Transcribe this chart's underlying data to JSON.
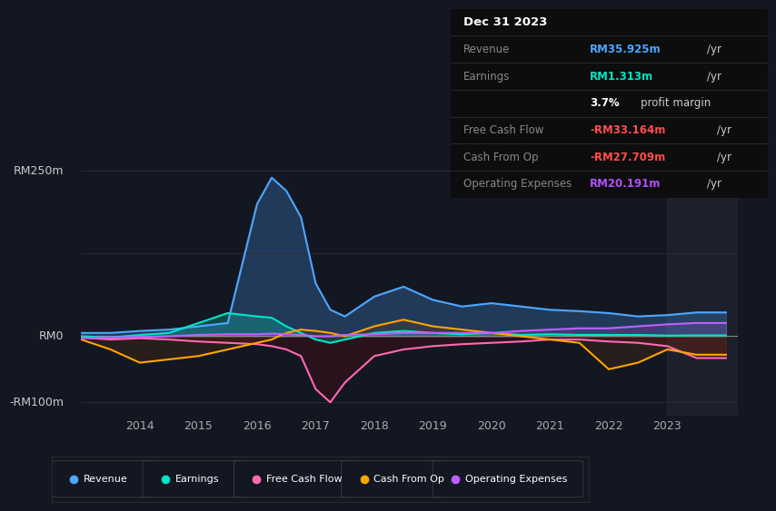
{
  "bg_color": "#131722",
  "plot_bg_color": "#131722",
  "grid_color": "#2a2e39",
  "zero_line_color": "#888888",
  "title_date": "Dec 31 2023",
  "ylim": [
    -120,
    280
  ],
  "yticks_labels": [
    "RM250m",
    "RM0",
    "-RM100m"
  ],
  "yticks_values": [
    250,
    0,
    -100
  ],
  "years": [
    2013.0,
    2013.5,
    2014.0,
    2014.5,
    2015.0,
    2015.5,
    2016.0,
    2016.25,
    2016.5,
    2016.75,
    2017.0,
    2017.25,
    2017.5,
    2018.0,
    2018.5,
    2019.0,
    2019.5,
    2020.0,
    2020.5,
    2021.0,
    2021.5,
    2022.0,
    2022.5,
    2023.0,
    2023.5,
    2024.0
  ],
  "revenue": [
    5,
    5,
    8,
    10,
    15,
    20,
    200,
    240,
    220,
    180,
    80,
    40,
    30,
    60,
    75,
    55,
    45,
    50,
    45,
    40,
    38,
    35,
    30,
    32,
    36,
    36
  ],
  "earnings": [
    0,
    -2,
    2,
    5,
    20,
    35,
    30,
    28,
    15,
    5,
    -5,
    -10,
    -5,
    5,
    8,
    5,
    3,
    5,
    2,
    3,
    2,
    2,
    2,
    1,
    1.3,
    1.3
  ],
  "free_cash_flow": [
    -2,
    -5,
    -3,
    -5,
    -8,
    -10,
    -12,
    -15,
    -20,
    -30,
    -80,
    -100,
    -70,
    -30,
    -20,
    -15,
    -12,
    -10,
    -8,
    -5,
    -5,
    -8,
    -10,
    -15,
    -33,
    -33
  ],
  "cash_from_op": [
    -5,
    -20,
    -40,
    -35,
    -30,
    -20,
    -10,
    -5,
    5,
    10,
    8,
    5,
    0,
    15,
    25,
    15,
    10,
    5,
    0,
    -5,
    -10,
    -50,
    -40,
    -20,
    -28,
    -28
  ],
  "operating_expenses": [
    -3,
    -2,
    -1,
    0,
    2,
    3,
    3,
    4,
    3,
    2,
    0,
    0,
    2,
    3,
    5,
    5,
    5,
    5,
    8,
    10,
    12,
    12,
    15,
    18,
    20,
    20
  ],
  "line_colors": {
    "revenue": "#4da6ff",
    "earnings": "#00e5c3",
    "free_cash_flow": "#ff69b4",
    "cash_from_op": "#ffa500",
    "operating_expenses": "#bf5fff"
  },
  "fill_colors": {
    "revenue": "#4da6ff",
    "earnings": "#00e5c3",
    "free_cash_flow": "#8b0000",
    "cash_from_op": "#8b4000",
    "operating_expenses": "#bf5fff"
  },
  "fill_alphas": {
    "revenue": 0.25,
    "earnings": 0.25,
    "free_cash_flow": 0.18,
    "cash_from_op": 0.18,
    "operating_expenses": 0.15
  },
  "xtick_years": [
    2014,
    2015,
    2016,
    2017,
    2018,
    2019,
    2020,
    2021,
    2022,
    2023
  ],
  "legend_items": [
    {
      "label": "Revenue",
      "color": "#4da6ff"
    },
    {
      "label": "Earnings",
      "color": "#00e5c3"
    },
    {
      "label": "Free Cash Flow",
      "color": "#ff69b4"
    },
    {
      "label": "Cash From Op",
      "color": "#ffa500"
    },
    {
      "label": "Operating Expenses",
      "color": "#bf5fff"
    }
  ],
  "table_rows": [
    {
      "label": "Revenue",
      "value": "RM35.925m",
      "val_color": "#4da6ff",
      "suffix": "/yr",
      "extra": null
    },
    {
      "label": "Earnings",
      "value": "RM1.313m",
      "val_color": "#00e5c3",
      "suffix": "/yr",
      "extra": "3.7% profit margin"
    },
    {
      "label": "Free Cash Flow",
      "value": "-RM33.164m",
      "val_color": "#ff4d4d",
      "suffix": "/yr",
      "extra": null
    },
    {
      "label": "Cash From Op",
      "value": "-RM27.709m",
      "val_color": "#ff4d4d",
      "suffix": "/yr",
      "extra": null
    },
    {
      "label": "Operating Expenses",
      "value": "RM20.191m",
      "val_color": "#b44dff",
      "suffix": "/yr",
      "extra": null
    }
  ]
}
